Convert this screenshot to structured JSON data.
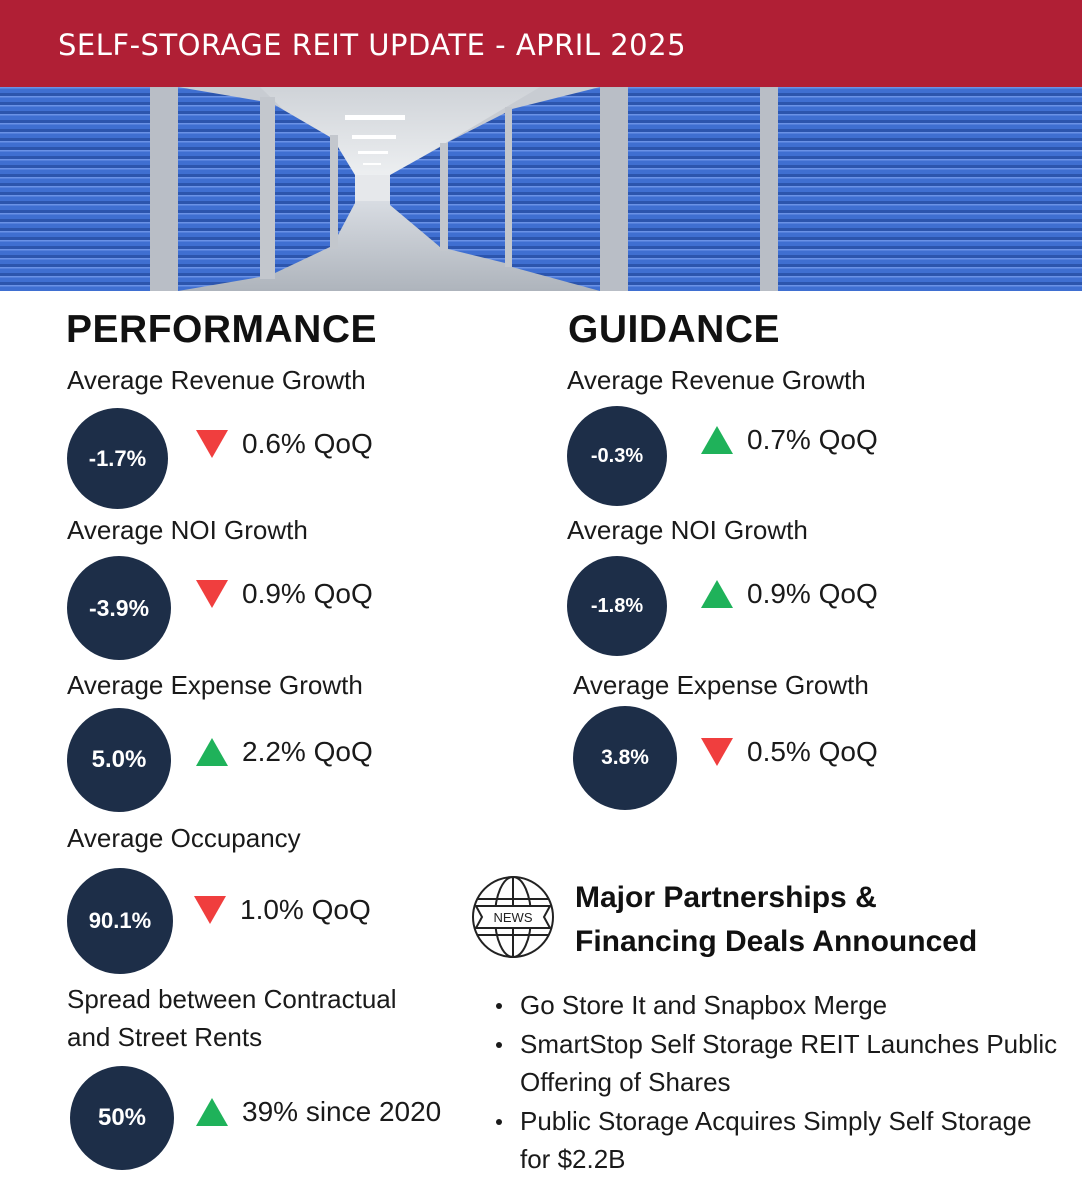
{
  "header": {
    "title": "SELF-STORAGE REIT UPDATE - APRIL 2025"
  },
  "colors": {
    "banner": "#b01f35",
    "circle": "#1d2e48",
    "down": "#f03e3e",
    "up": "#1fb25a",
    "doors": "#3f6fd1"
  },
  "performance": {
    "title": "PERFORMANCE",
    "metrics": [
      {
        "label": "Average Revenue Growth",
        "value": "-1.7%",
        "direction": "down",
        "change": "0.6% QoQ"
      },
      {
        "label": "Average NOI Growth",
        "value": "-3.9%",
        "direction": "down",
        "change": "0.9% QoQ"
      },
      {
        "label": "Average Expense Growth",
        "value": "5.0%",
        "direction": "up",
        "change": "2.2% QoQ"
      },
      {
        "label": "Average Occupancy",
        "value": "90.1%",
        "direction": "down",
        "change": "1.0% QoQ"
      },
      {
        "label_line1": "Spread between Contractual",
        "label_line2": "and Street Rents",
        "value": "50%",
        "direction": "up",
        "change": "39% since 2020"
      }
    ]
  },
  "guidance": {
    "title": "GUIDANCE",
    "metrics": [
      {
        "label": "Average Revenue Growth",
        "value": "-0.3%",
        "direction": "up",
        "change": "0.7% QoQ"
      },
      {
        "label": "Average NOI Growth",
        "value": "-1.8%",
        "direction": "up",
        "change": "0.9% QoQ"
      },
      {
        "label": "Average Expense Growth",
        "value": "3.8%",
        "direction": "down",
        "change": "0.5% QoQ"
      }
    ]
  },
  "news": {
    "icon": "news-globe-icon",
    "icon_text": "NEWS",
    "title_line1": "Major Partnerships &",
    "title_line2": "Financing Deals Announced",
    "items": [
      "Go Store It and Snapbox Merge",
      "SmartStop Self Storage REIT Launches Public Offering of Shares",
      "Public Storage Acquires Simply Self Storage for $2.2B"
    ]
  }
}
